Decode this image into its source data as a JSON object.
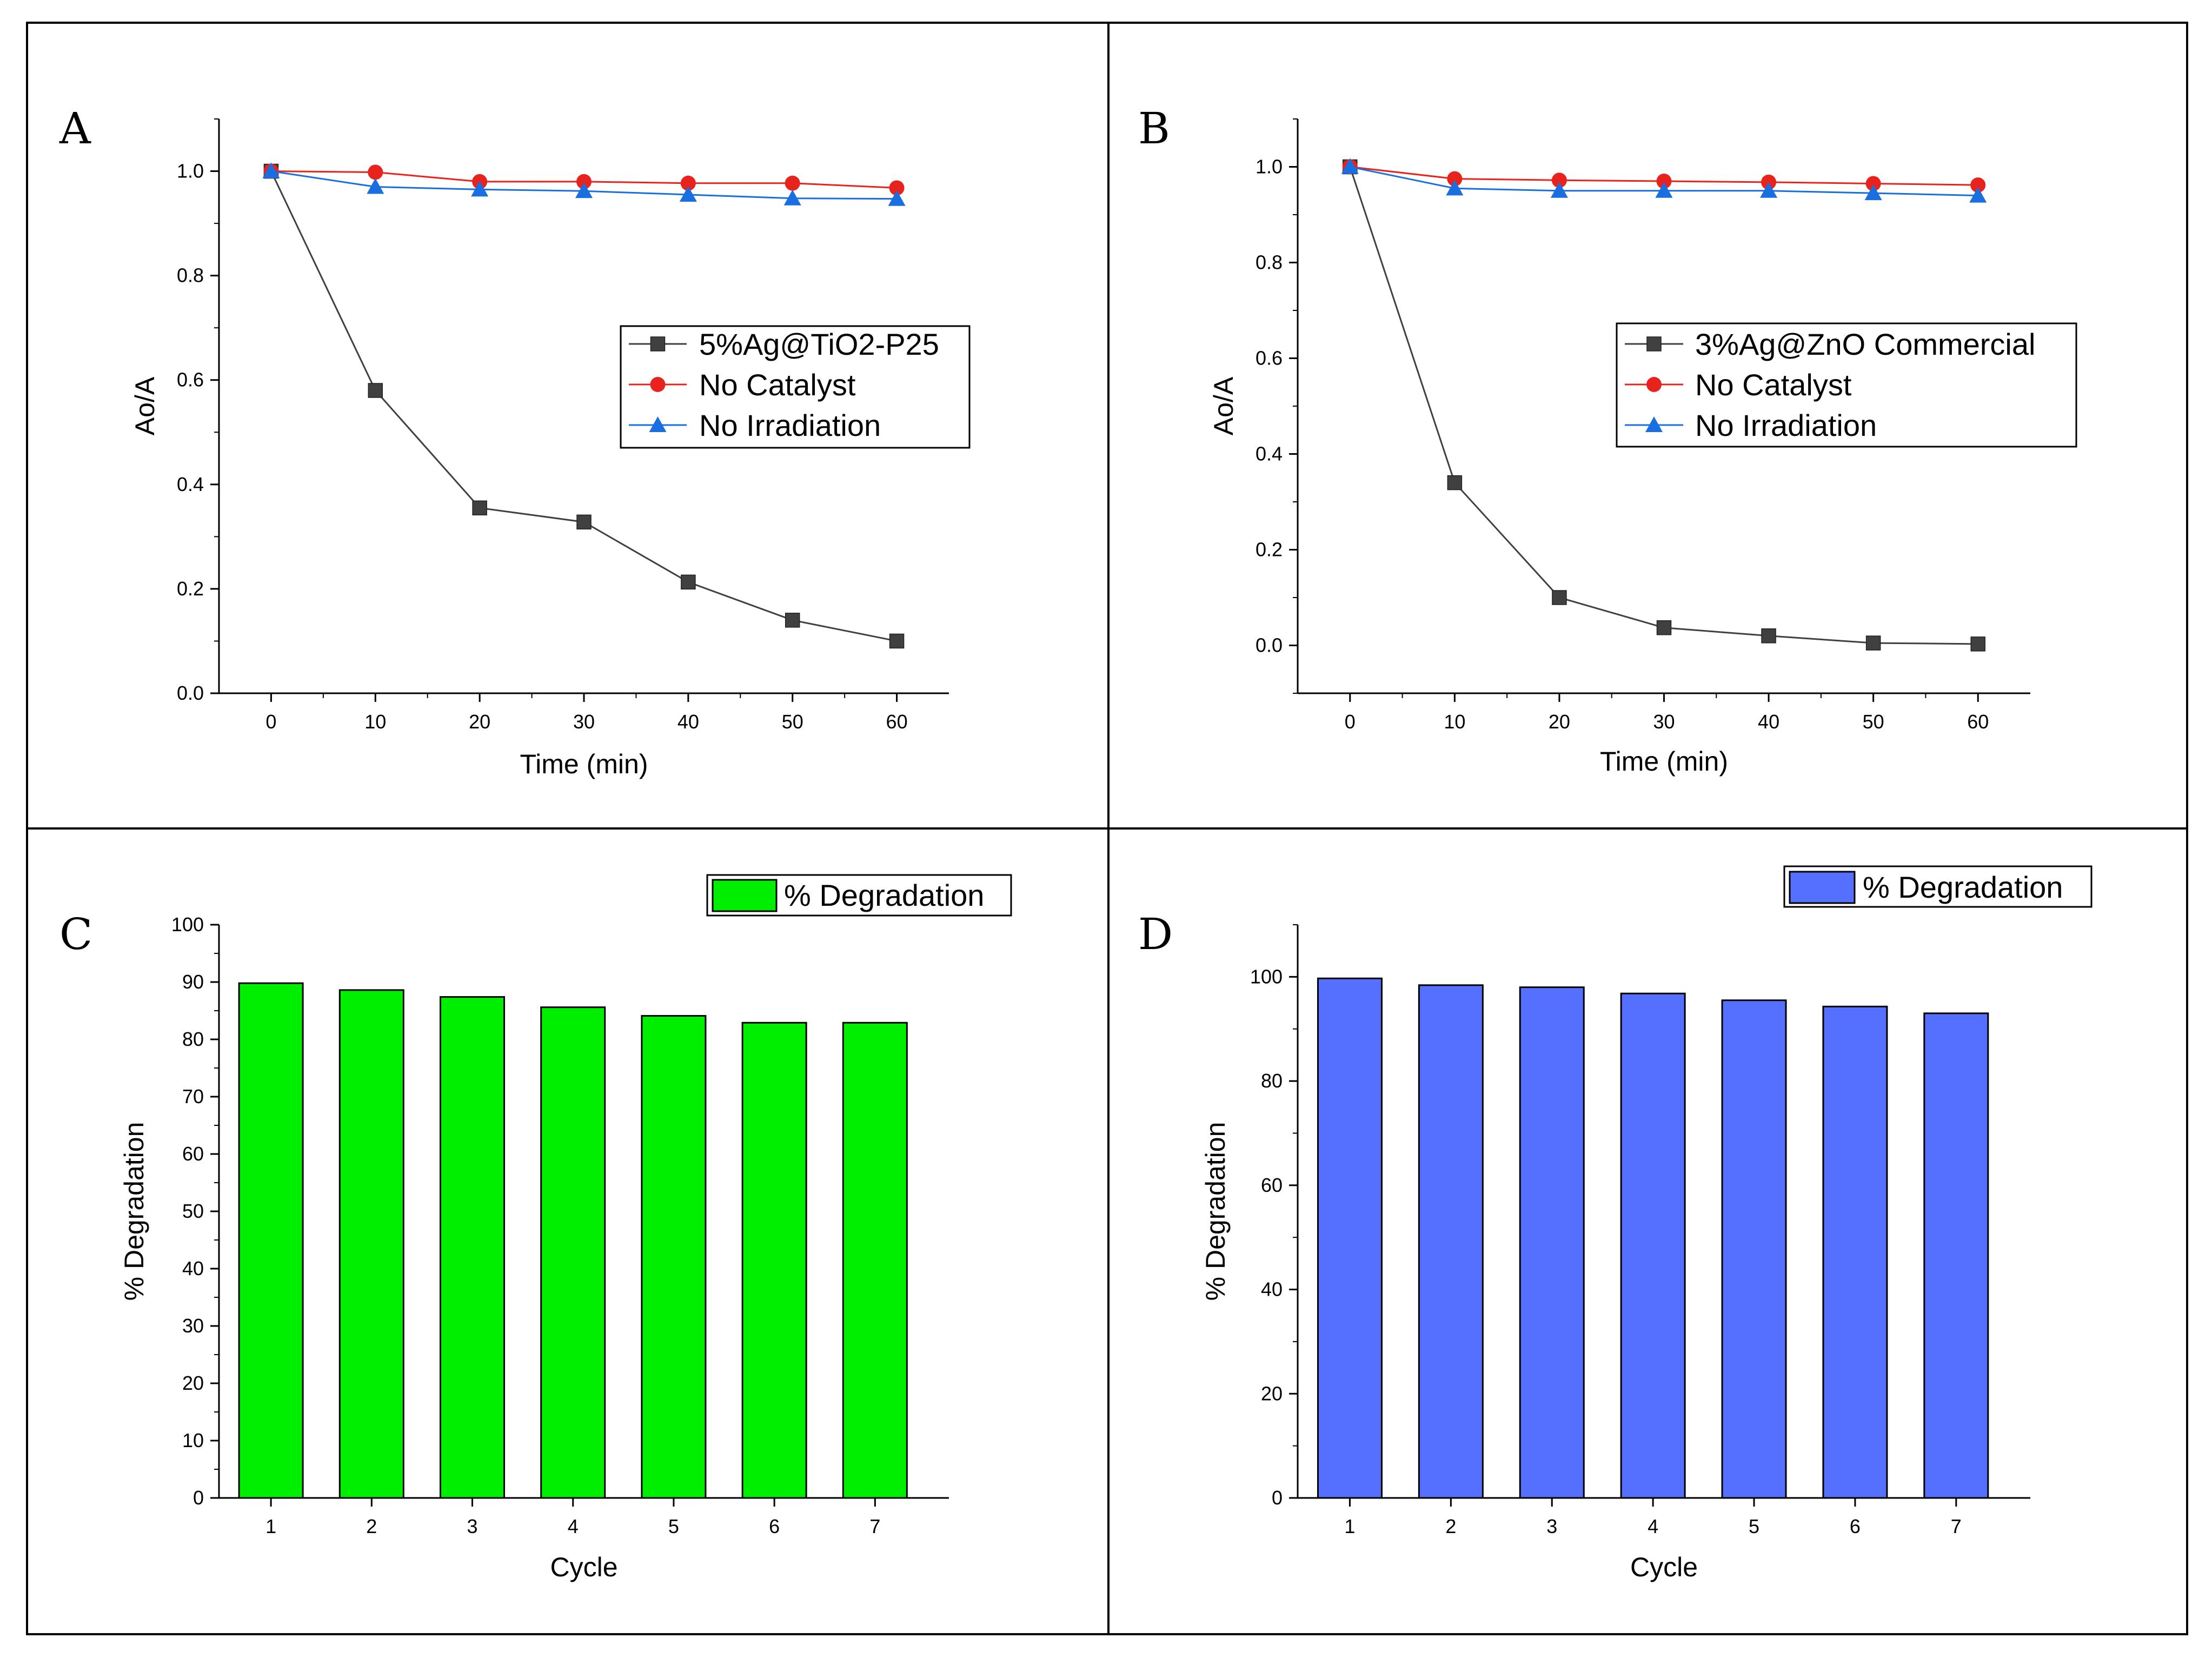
{
  "chart_data": [
    {
      "panel": "A",
      "type": "line",
      "title": "",
      "xlabel": "Time (min)",
      "ylabel": "Ao/A",
      "x": [
        0,
        10,
        20,
        30,
        40,
        50,
        60
      ],
      "xticks": [
        0,
        10,
        20,
        30,
        40,
        50,
        60
      ],
      "yticks": [
        "0.0",
        "0.2",
        "0.4",
        "0.6",
        "0.8",
        "1.0"
      ],
      "xlim": [
        -5,
        65
      ],
      "ylim": [
        0,
        1.1
      ],
      "legend_position": "center-right",
      "series": [
        {
          "name": "5%Ag@TiO2-P25",
          "color": "#404040",
          "marker": "square",
          "values": [
            1.0,
            0.58,
            0.355,
            0.328,
            0.213,
            0.14,
            0.1
          ]
        },
        {
          "name": "No Catalyst",
          "color": "#e8231d",
          "marker": "circle",
          "values": [
            1.0,
            0.998,
            0.98,
            0.98,
            0.977,
            0.977,
            0.968
          ]
        },
        {
          "name": "No Irradiation",
          "color": "#1a6fe0",
          "marker": "triangle",
          "values": [
            1.0,
            0.97,
            0.965,
            0.962,
            0.955,
            0.948,
            0.947
          ]
        }
      ]
    },
    {
      "panel": "B",
      "type": "line",
      "title": "",
      "xlabel": "Time (min)",
      "ylabel": "Ao/A",
      "x": [
        0,
        10,
        20,
        30,
        40,
        50,
        60
      ],
      "xticks": [
        0,
        10,
        20,
        30,
        40,
        50,
        60
      ],
      "yticks": [
        "0.0",
        "0.2",
        "0.4",
        "0.6",
        "0.8",
        "1.0"
      ],
      "xlim": [
        -5,
        65
      ],
      "ylim": [
        -0.1,
        1.1
      ],
      "legend_position": "center-right",
      "series": [
        {
          "name": "3%Ag@ZnO Commercial",
          "color": "#404040",
          "marker": "square",
          "values": [
            1.0,
            0.34,
            0.1,
            0.037,
            0.02,
            0.005,
            0.003
          ]
        },
        {
          "name": "No Catalyst",
          "color": "#e8231d",
          "marker": "circle",
          "values": [
            1.0,
            0.975,
            0.972,
            0.97,
            0.968,
            0.965,
            0.962
          ]
        },
        {
          "name": "No Irradiation",
          "color": "#1a6fe0",
          "marker": "triangle",
          "values": [
            1.0,
            0.955,
            0.95,
            0.95,
            0.95,
            0.945,
            0.94
          ]
        }
      ]
    },
    {
      "panel": "C",
      "type": "bar",
      "title": "",
      "xlabel": "Cycle",
      "ylabel": "% Degradation",
      "categories": [
        "1",
        "2",
        "3",
        "4",
        "5",
        "6",
        "7"
      ],
      "yticks": [
        "0",
        "10",
        "20",
        "30",
        "40",
        "50",
        "60",
        "70",
        "80",
        "90",
        "100"
      ],
      "ylim": [
        0,
        100
      ],
      "legend_position": "top-right",
      "series": [
        {
          "name": "% Degradation",
          "color": "#00ee00",
          "values": [
            89.8,
            88.6,
            87.4,
            85.6,
            84.1,
            82.9,
            82.9
          ]
        }
      ]
    },
    {
      "panel": "D",
      "type": "bar",
      "title": "",
      "xlabel": "Cycle",
      "ylabel": "% Degradation",
      "categories": [
        "1",
        "2",
        "3",
        "4",
        "5",
        "6",
        "7"
      ],
      "yticks": [
        "0",
        "20",
        "40",
        "60",
        "80",
        "100"
      ],
      "ylim": [
        0,
        110
      ],
      "legend_position": "top-right",
      "series": [
        {
          "name": "% Degradation",
          "color": "#5570ff",
          "values": [
            99.7,
            98.4,
            98.0,
            96.8,
            95.5,
            94.3,
            93.0
          ]
        }
      ]
    }
  ]
}
